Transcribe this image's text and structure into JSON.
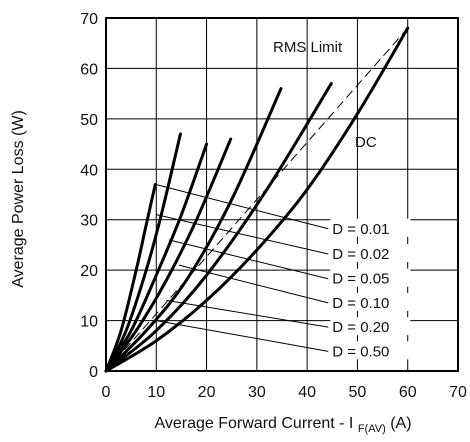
{
  "chart_data": {
    "type": "line",
    "xlabel_main": "Average Forward Current - I",
    "xlabel_sub": "F(AV)",
    "xlabel_unit": "(A)",
    "ylabel": "Average  Power Loss (W)",
    "xlim": [
      0,
      70
    ],
    "ylim": [
      0,
      70
    ],
    "x_ticks": [
      "0",
      "10",
      "20",
      "30",
      "40",
      "50",
      "60",
      "70"
    ],
    "y_ticks": [
      "0",
      "10",
      "20",
      "30",
      "40",
      "50",
      "60",
      "70"
    ],
    "grid": true,
    "series": [
      {
        "name": "D = 0.01",
        "x": [
          0,
          3,
          6,
          8,
          9.8
        ],
        "y": [
          0,
          8,
          20,
          29,
          37
        ],
        "label_at": [
          45,
          28.2
        ],
        "label_line_from": [
          9.8,
          37
        ]
      },
      {
        "name": "D = 0.02",
        "x": [
          0,
          4,
          8,
          11,
          14.8
        ],
        "y": [
          0,
          8,
          20,
          31,
          47
        ],
        "label_at": [
          45,
          23.2
        ],
        "label_line_from": [
          10,
          31
        ]
      },
      {
        "name": "D = 0.05",
        "x": [
          0,
          5,
          10,
          15,
          20
        ],
        "y": [
          0,
          8,
          19,
          31,
          45
        ],
        "label_at": [
          45,
          18.3
        ],
        "label_line_from": [
          12.5,
          26
        ]
      },
      {
        "name": "D = 0.10",
        "x": [
          0,
          6,
          12,
          18,
          24.8
        ],
        "y": [
          0,
          8,
          18,
          30,
          46
        ],
        "label_at": [
          45,
          13.5
        ],
        "label_line_from": [
          14.5,
          21
        ]
      },
      {
        "name": "D = 0.20",
        "x": [
          0,
          8,
          16,
          25,
          34.8
        ],
        "y": [
          0,
          8,
          18,
          34,
          56
        ],
        "label_at": [
          45,
          8.7
        ],
        "label_line_from": [
          12,
          14
        ]
      },
      {
        "name": "D = 0.50",
        "x": [
          0,
          10,
          20,
          32,
          44.8
        ],
        "y": [
          0,
          8,
          19,
          36,
          57
        ],
        "label_at": [
          45,
          3.9
        ],
        "label_line_from": [
          10,
          10
        ]
      },
      {
        "name": "DC",
        "x": [
          0,
          10,
          20,
          30,
          40,
          50,
          60
        ],
        "y": [
          0,
          6,
          14,
          24,
          36,
          51,
          68
        ]
      }
    ],
    "rms_limit": {
      "x": [
        0,
        60
      ],
      "y": [
        0,
        68
      ]
    },
    "annotations": {
      "rms_label": "RMS Limit",
      "dc_label": "DC"
    }
  }
}
